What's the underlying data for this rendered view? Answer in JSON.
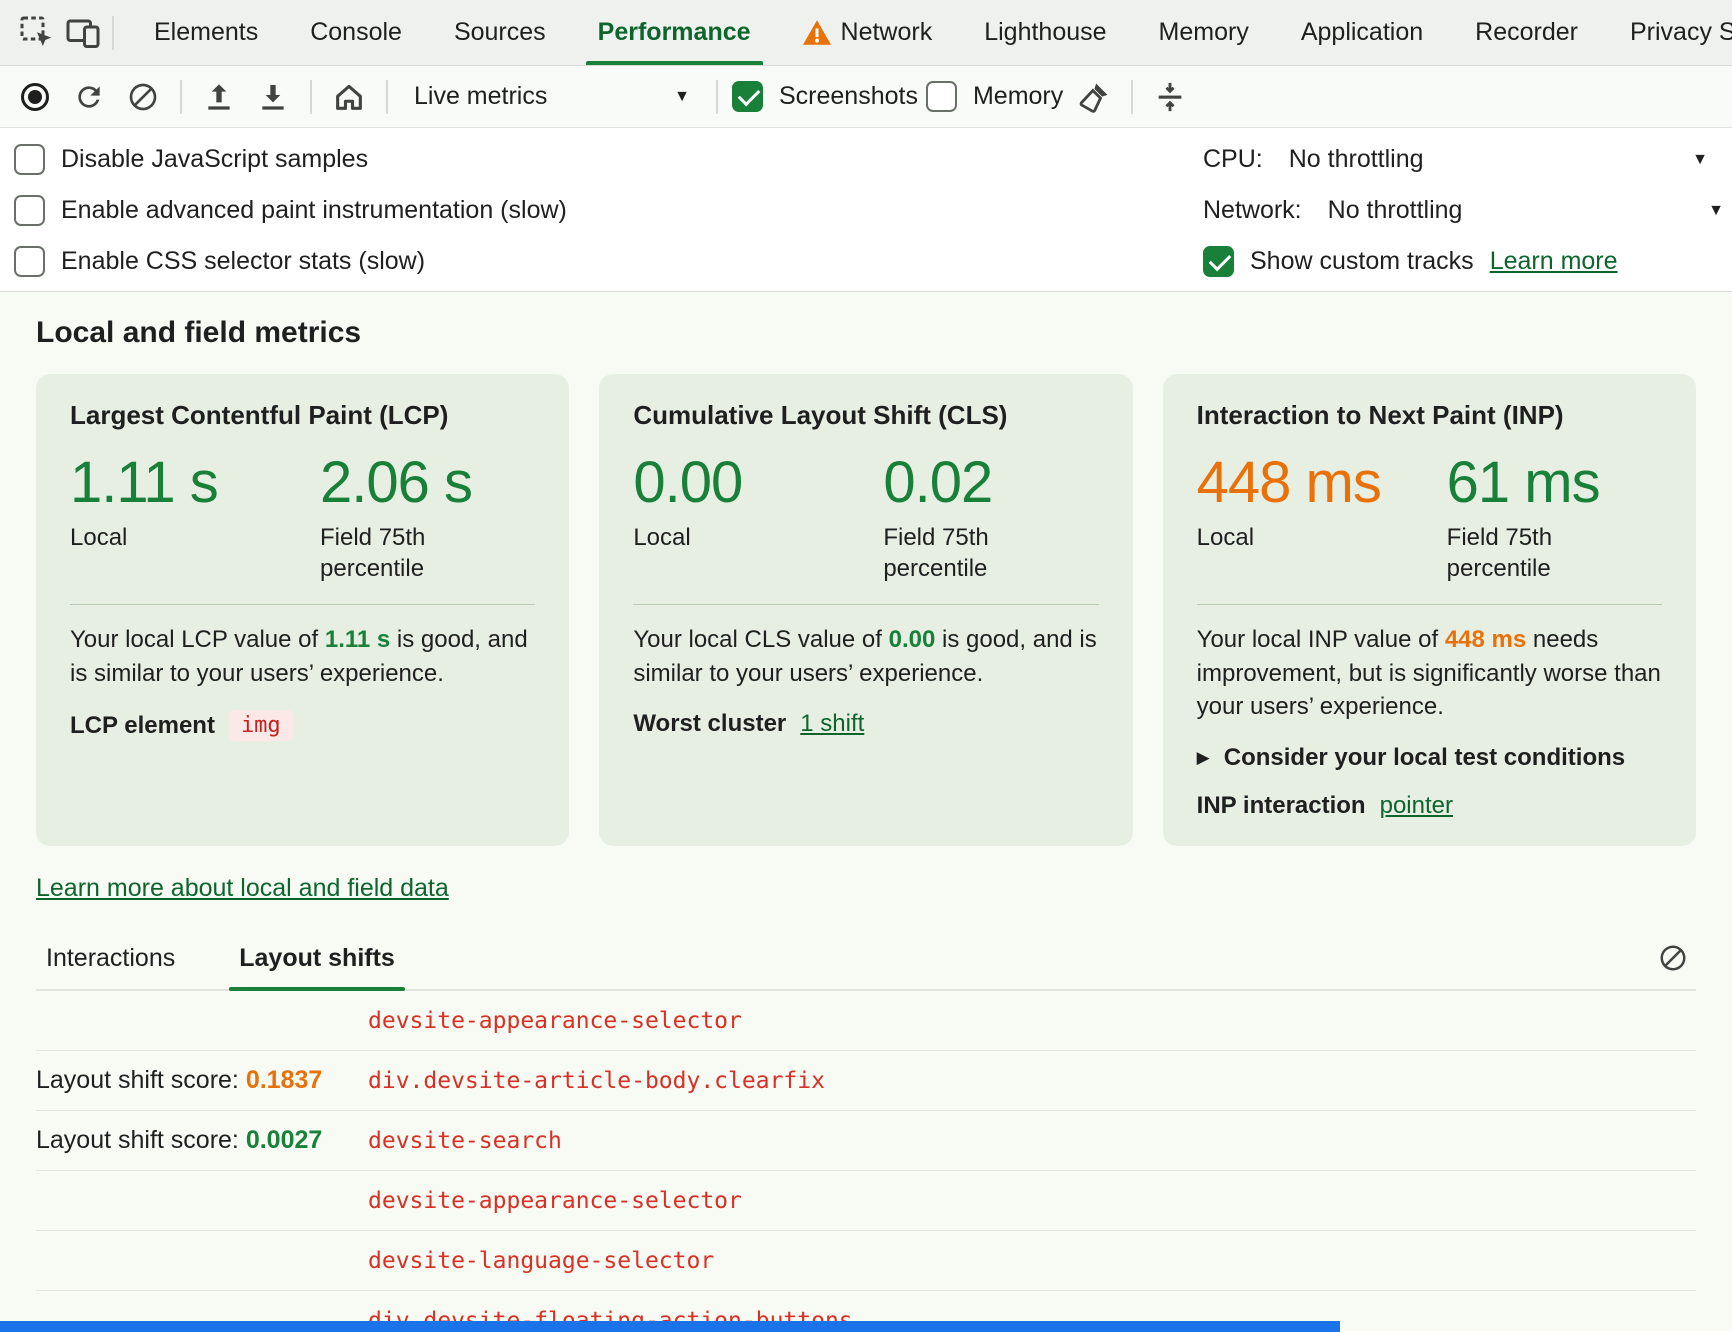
{
  "colors": {
    "green": "#188038",
    "orange": "#e8710a",
    "red": "#d93025",
    "link_green": "#0d652d",
    "blue": "#1a73e8"
  },
  "tabbar": {
    "tabs": [
      {
        "label": "Elements"
      },
      {
        "label": "Console"
      },
      {
        "label": "Sources"
      },
      {
        "label": "Performance",
        "active": true
      },
      {
        "label": "Network",
        "warning": true
      },
      {
        "label": "Lighthouse"
      },
      {
        "label": "Memory"
      },
      {
        "label": "Application"
      },
      {
        "label": "Recorder"
      },
      {
        "label": "Privacy Sandbox"
      }
    ]
  },
  "toolbar": {
    "live_metrics": "Live metrics",
    "screenshots": {
      "label": "Screenshots",
      "checked": true
    },
    "memory": {
      "label": "Memory",
      "checked": false
    }
  },
  "settings": {
    "options": [
      {
        "label": "Disable JavaScript samples",
        "checked": false
      },
      {
        "label": "Enable advanced paint instrumentation (slow)",
        "checked": false
      },
      {
        "label": "Enable CSS selector stats (slow)",
        "checked": false
      }
    ],
    "cpu": {
      "label": "CPU:",
      "value": "No throttling"
    },
    "network": {
      "label": "Network:",
      "value": "No throttling"
    },
    "custom_tracks": {
      "label": "Show custom tracks",
      "checked": true,
      "link": "Learn more"
    }
  },
  "metrics": {
    "heading": "Local and field metrics",
    "cards": [
      {
        "title": "Largest Contentful Paint (LCP)",
        "local": {
          "value": "1.11 s",
          "color": "green",
          "label": "Local"
        },
        "field": {
          "value": "2.06 s",
          "color": "green",
          "label": "Field 75th percentile"
        },
        "description": [
          {
            "text": "Your local LCP value of "
          },
          {
            "text": "1.11 s",
            "color": "green"
          },
          {
            "text": " is good, and is similar to your users’ experience."
          }
        ],
        "rows": [
          {
            "type": "chip",
            "label": "LCP element",
            "value": "img"
          }
        ]
      },
      {
        "title": "Cumulative Layout Shift (CLS)",
        "local": {
          "value": "0.00",
          "color": "green",
          "label": "Local"
        },
        "field": {
          "value": "0.02",
          "color": "green",
          "label": "Field 75th percentile"
        },
        "description": [
          {
            "text": "Your local CLS value of "
          },
          {
            "text": "0.00",
            "color": "green"
          },
          {
            "text": " is good, and is similar to your users’ experience."
          }
        ],
        "rows": [
          {
            "type": "link",
            "label": "Worst cluster",
            "value": "1 shift"
          }
        ]
      },
      {
        "title": "Interaction to Next Paint (INP)",
        "local": {
          "value": "448 ms",
          "color": "orange",
          "label": "Local"
        },
        "field": {
          "value": "61 ms",
          "color": "green",
          "label": "Field 75th percentile"
        },
        "description": [
          {
            "text": "Your local INP value of "
          },
          {
            "text": "448 ms",
            "color": "orange"
          },
          {
            "text": " needs improvement, but is significantly worse than your users’ experience."
          }
        ],
        "rows": [
          {
            "type": "disclosure",
            "label": "Consider your local test conditions"
          },
          {
            "type": "link",
            "label": "INP interaction",
            "value": "pointer"
          }
        ]
      }
    ],
    "learn_more_link": "Learn more about local and field data"
  },
  "log": {
    "tabs": [
      {
        "label": "Interactions"
      },
      {
        "label": "Layout shifts",
        "active": true
      }
    ],
    "rows": [
      {
        "node": "devsite-appearance-selector"
      },
      {
        "score_label": "Layout shift score: ",
        "score": "0.1837",
        "score_color": "orange",
        "node": "div.devsite-article-body.clearfix"
      },
      {
        "score_label": "Layout shift score: ",
        "score": "0.0027",
        "score_color": "green",
        "node": "devsite-search"
      },
      {
        "node": "devsite-appearance-selector"
      },
      {
        "node": "devsite-language-selector"
      },
      {
        "node": "div.devsite-floating-action-buttons"
      }
    ]
  }
}
